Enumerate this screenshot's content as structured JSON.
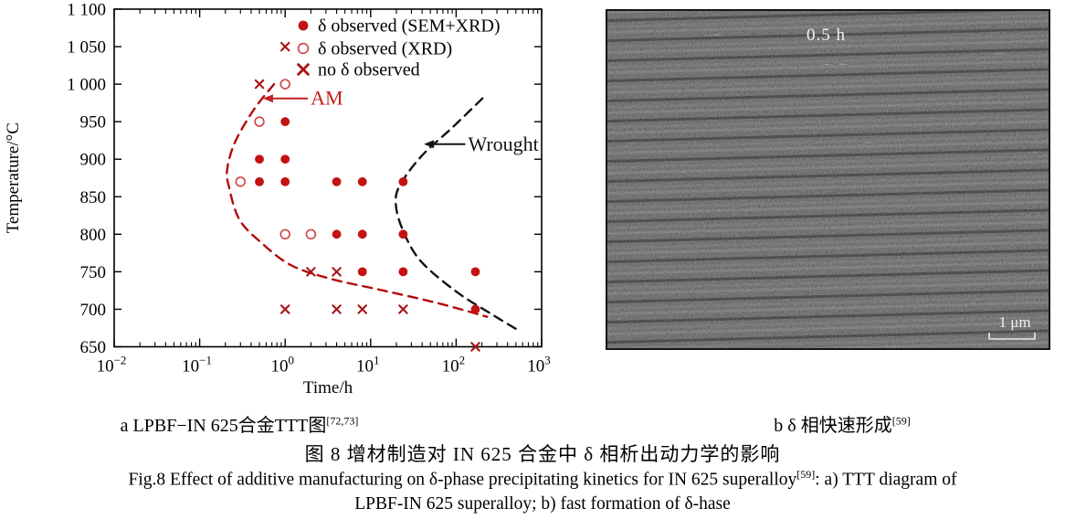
{
  "figure": {
    "caption_zh": "图 8   增材制造对 IN 625 合金中 δ 相析出动力学的影响",
    "caption_en_1": "Fig.8 Effect of additive manufacturing on δ-phase precipitating kinetics for IN 625 superalloy",
    "caption_en_ref": "[59]",
    "caption_en_1_tail": ": a) TTT diagram of",
    "caption_en_2": "LPBF-IN 625 superalloy; b) fast formation of δ-hase"
  },
  "panel_a": {
    "label": "a  LPBF−IN 625合金TTT图",
    "label_ref": "[72,73]"
  },
  "panel_b": {
    "label": "b  δ 相快速形成",
    "label_ref": "[59]",
    "annotation": "0.5 h",
    "scalebar": "1 μm"
  },
  "chart_data": {
    "type": "scatter",
    "title": "",
    "xlabel": "Time/h",
    "ylabel": "Temperature/°C",
    "xscale": "log",
    "xlim": [
      0.01,
      1000
    ],
    "ylim": [
      650,
      1100
    ],
    "grid": false,
    "legend_position": "top-right",
    "ytick_values": [
      1100,
      1050,
      1000,
      950,
      900,
      850,
      800,
      750,
      700,
      650
    ],
    "ytick_labels": [
      "1 100",
      "1 050",
      "1 000",
      "950",
      "900",
      "850",
      "800",
      "750",
      "700",
      "650"
    ],
    "xtick_exponents": [
      -2,
      -1,
      0,
      1,
      2,
      3
    ],
    "legend": [
      {
        "marker": "filled-circle",
        "label": "δ observed (SEM+XRD)"
      },
      {
        "marker": "open-circle",
        "label": "δ observed (XRD)"
      },
      {
        "marker": "x",
        "label": "no δ observed"
      }
    ],
    "series": [
      {
        "name": "δ observed (SEM+XRD)",
        "marker": "filled-circle",
        "color": "#c41212",
        "points": [
          [
            1,
            950
          ],
          [
            0.5,
            900
          ],
          [
            1,
            900
          ],
          [
            0.5,
            870
          ],
          [
            1,
            870
          ],
          [
            4,
            870
          ],
          [
            8,
            870
          ],
          [
            24,
            870
          ],
          [
            4,
            800
          ],
          [
            8,
            800
          ],
          [
            24,
            800
          ],
          [
            8,
            750
          ],
          [
            24,
            750
          ],
          [
            168,
            750
          ],
          [
            168,
            700
          ]
        ]
      },
      {
        "name": "δ observed (XRD)",
        "marker": "open-circle",
        "color": "#cf4a4a",
        "points": [
          [
            1,
            1000
          ],
          [
            0.5,
            950
          ],
          [
            0.3,
            870
          ],
          [
            1,
            800
          ],
          [
            2,
            800
          ]
        ]
      },
      {
        "name": "no δ observed",
        "marker": "x",
        "color": "#a81414",
        "points": [
          [
            1,
            1050
          ],
          [
            0.5,
            1000
          ],
          [
            2,
            750
          ],
          [
            4,
            750
          ],
          [
            1,
            700
          ],
          [
            4,
            700
          ],
          [
            8,
            700
          ],
          [
            24,
            700
          ],
          [
            168,
            650
          ]
        ]
      }
    ],
    "curves": [
      {
        "name": "AM",
        "color": "#b30b0b",
        "dashed": true,
        "points": [
          [
            0.74,
            1000
          ],
          [
            0.43,
            966
          ],
          [
            0.26,
            923
          ],
          [
            0.21,
            887
          ],
          [
            0.22,
            863
          ],
          [
            0.29,
            820
          ],
          [
            0.51,
            790
          ],
          [
            1.16,
            759
          ],
          [
            3.3,
            741
          ],
          [
            14,
            725
          ],
          [
            62,
            708
          ],
          [
            230,
            690
          ]
        ]
      },
      {
        "name": "Wrought",
        "color": "#141414",
        "dashed": true,
        "points": [
          [
            203,
            981
          ],
          [
            90,
            942
          ],
          [
            40,
            905
          ],
          [
            23,
            869
          ],
          [
            19.6,
            844
          ],
          [
            23.3,
            808
          ],
          [
            38,
            765
          ],
          [
            102,
            723
          ],
          [
            273,
            692
          ],
          [
            571,
            670
          ]
        ]
      }
    ],
    "annotations": [
      {
        "text": "AM",
        "color": "#c22020",
        "temp": 981,
        "t_text": 1.8,
        "t_tip": 0.55
      },
      {
        "text": "Wrought",
        "color": "#141414",
        "temp": 920,
        "t_text": 125,
        "t_tip": 42
      }
    ]
  }
}
